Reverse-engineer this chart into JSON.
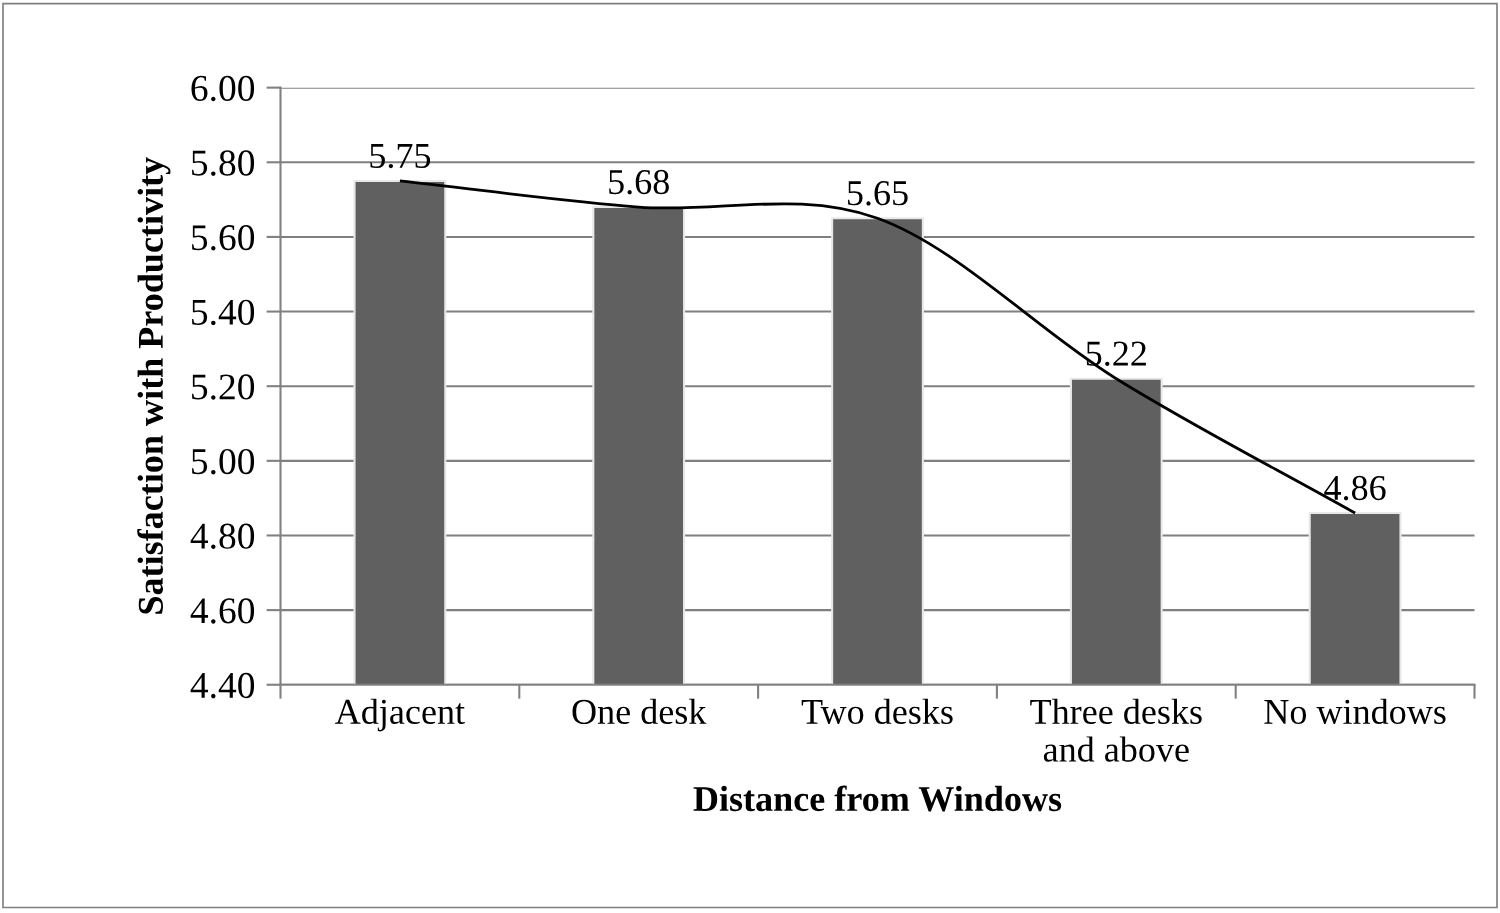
{
  "chart_data": {
    "type": "bar",
    "xlabel": "Distance from Windows",
    "ylabel": "Satisfaction with Productivity",
    "categories": [
      "Adjacent",
      "One desk",
      "Two desks",
      "Three desks\nand above",
      "No windows"
    ],
    "series": [
      {
        "color": "#606060",
        "values": [
          5.75,
          5.68,
          5.65,
          5.22,
          4.86
        ],
        "value_labels": [
          "5.75",
          "5.68",
          "5.65",
          "5.22",
          "4.86"
        ]
      },
      {
        "type": "line",
        "color": "#000000",
        "values": [
          5.75,
          5.68,
          5.65,
          5.22,
          4.86
        ]
      }
    ],
    "ylim": [
      4.4,
      6.0
    ],
    "yticks": [
      {
        "value": 4.4,
        "label": "4.40"
      },
      {
        "value": 4.6,
        "label": "4.60"
      },
      {
        "value": 4.8,
        "label": "4.80"
      },
      {
        "value": 5.0,
        "label": "5.00"
      },
      {
        "value": 5.2,
        "label": "5.20"
      },
      {
        "value": 5.4,
        "label": "5.40"
      },
      {
        "value": 5.6,
        "label": "5.60"
      },
      {
        "value": 5.8,
        "label": "5.80"
      },
      {
        "value": 6.0,
        "label": "6.00"
      }
    ],
    "grid": "y",
    "line_style": "solid"
  }
}
